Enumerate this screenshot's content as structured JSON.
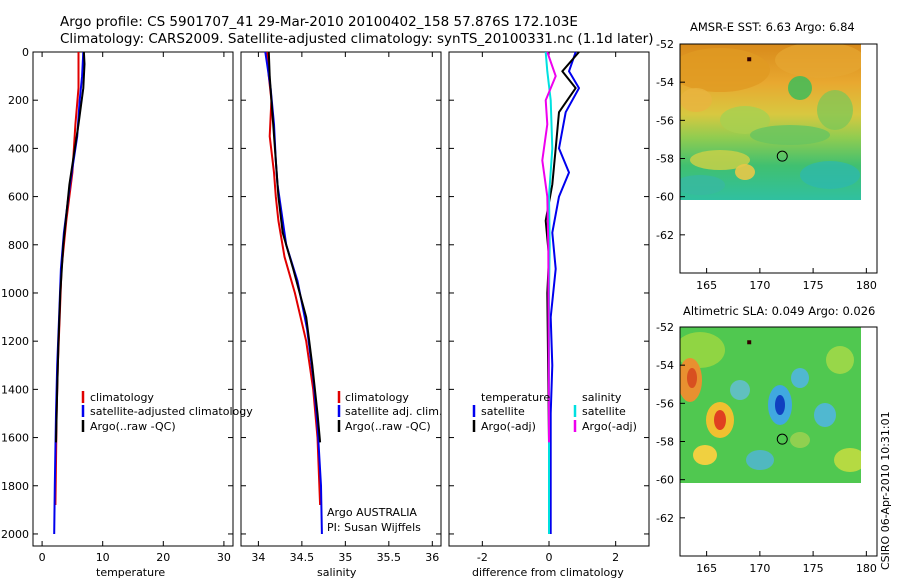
{
  "title": {
    "line1": "Argo profile: CS 5901707_41 29-Mar-2010 20100402_158 57.876S 172.103E",
    "line2": "Climatology: CARS2009. Satellite-adjusted climatology: synTS_20100331.nc (1.1d later)"
  },
  "colors": {
    "climatology": "#e00000",
    "satellite": "#0000ee",
    "argo": "#000000",
    "satellite_salinity": "#00e0e0",
    "argo_salinity": "#ee00ee"
  },
  "chart_data": [
    {
      "type": "line",
      "name": "temperature",
      "xlabel": "temperature",
      "xlim": [
        -1.5,
        31.5
      ],
      "ylim": [
        2050,
        0
      ],
      "xticks": [
        0,
        10,
        20,
        30
      ],
      "yticks": [
        0,
        200,
        400,
        600,
        800,
        1000,
        1200,
        1400,
        1600,
        1800,
        2000
      ],
      "series": [
        {
          "name": "climatology",
          "color": "#e00000",
          "x": [
            6.0,
            6.0,
            5.5,
            5.0,
            4.0,
            3.2,
            2.9,
            2.6,
            2.4,
            2.3,
            2.2
          ],
          "y": [
            0,
            150,
            300,
            500,
            700,
            900,
            1100,
            1300,
            1500,
            1700,
            1880
          ]
        },
        {
          "name": "satellite-adjusted climatology",
          "color": "#0000ee",
          "x": [
            6.8,
            6.6,
            6.2,
            5.8,
            4.6,
            3.6,
            3.1,
            2.8,
            2.5,
            2.3,
            2.1,
            2.0
          ],
          "y": [
            0,
            100,
            200,
            350,
            550,
            750,
            900,
            1100,
            1300,
            1500,
            1800,
            2000
          ]
        },
        {
          "name": "Argo(..raw -QC)",
          "color": "#000000",
          "x": [
            6.9,
            7.0,
            6.8,
            6.0,
            4.5,
            3.5,
            3.0,
            2.7,
            2.5,
            2.3
          ],
          "y": [
            0,
            50,
            150,
            300,
            550,
            800,
            1000,
            1200,
            1400,
            1620
          ]
        }
      ],
      "legend": {
        "position": "bottom-right",
        "entries": [
          "climatology",
          "satellite-adjusted climatology",
          "Argo(..raw -QC)"
        ]
      }
    },
    {
      "type": "line",
      "name": "salinity",
      "xlabel": "salinity",
      "xlim": [
        33.8,
        36.1
      ],
      "ylim": [
        2050,
        0
      ],
      "xticks": [
        34,
        34.5,
        35,
        35.5,
        36
      ],
      "xtick_labels": [
        "34",
        "34.5",
        "35",
        "35.5",
        "36"
      ],
      "series": [
        {
          "name": "climatology",
          "color": "#e00000",
          "x": [
            34.1,
            34.12,
            34.15,
            34.13,
            34.18,
            34.2,
            34.23,
            34.3,
            34.42,
            34.55,
            34.63,
            34.68,
            34.71
          ],
          "y": [
            0,
            100,
            200,
            350,
            500,
            600,
            700,
            850,
            1000,
            1200,
            1400,
            1600,
            1880
          ]
        },
        {
          "name": "satellite adj. clim.",
          "color": "#0000ee",
          "x": [
            34.08,
            34.1,
            34.14,
            34.18,
            34.2,
            34.22,
            34.26,
            34.32,
            34.45,
            34.56,
            34.63,
            34.68,
            34.72,
            34.73
          ],
          "y": [
            0,
            50,
            150,
            300,
            450,
            550,
            650,
            800,
            950,
            1150,
            1350,
            1550,
            1800,
            2000
          ]
        },
        {
          "name": "Argo(..raw -QC)",
          "color": "#000000",
          "x": [
            34.12,
            34.13,
            34.15,
            34.17,
            34.2,
            34.23,
            34.28,
            34.4,
            34.55,
            34.62,
            34.68,
            34.71
          ],
          "y": [
            0,
            100,
            200,
            300,
            450,
            600,
            750,
            900,
            1100,
            1300,
            1500,
            1620
          ]
        }
      ],
      "legend": {
        "position": "bottom-right",
        "entries": [
          "climatology",
          "satellite adj. clim.",
          "Argo(..raw -QC)"
        ]
      },
      "annotation": [
        "Argo AUSTRALIA",
        "PI: Susan Wijffels"
      ]
    },
    {
      "type": "line",
      "name": "difference",
      "xlabel": "difference from climatology",
      "xlim": [
        -3,
        3
      ],
      "ylim": [
        2050,
        0
      ],
      "xticks": [
        -2,
        0,
        2
      ],
      "series": [
        {
          "name": "temperature satellite",
          "color": "#0000ee",
          "x": [
            0.8,
            0.6,
            0.9,
            0.5,
            0.3,
            0.6,
            0.3,
            0.1,
            0.2,
            0.05,
            0.1,
            0.05,
            0.05
          ],
          "y": [
            0,
            80,
            150,
            250,
            400,
            500,
            600,
            750,
            900,
            1100,
            1300,
            1500,
            2000
          ]
        },
        {
          "name": "temperature Argo(-adj)",
          "color": "#000000",
          "x": [
            0.9,
            0.4,
            0.8,
            0.3,
            0.2,
            0.1,
            -0.1,
            0.0,
            -0.05,
            0.0
          ],
          "y": [
            0,
            80,
            150,
            250,
            400,
            550,
            700,
            850,
            1000,
            1620
          ]
        },
        {
          "name": "salinity satellite",
          "color": "#00e0e0",
          "x": [
            -0.1,
            -0.05,
            0.05,
            0.1,
            0.0,
            0.02,
            0.0,
            0.0,
            0.0
          ],
          "y": [
            0,
            80,
            200,
            400,
            600,
            800,
            1000,
            1400,
            2000
          ]
        },
        {
          "name": "salinity Argo(-adj)",
          "color": "#ee00ee",
          "x": [
            -0.05,
            0.2,
            -0.1,
            -0.05,
            -0.2,
            -0.05,
            -0.02,
            0.0
          ],
          "y": [
            0,
            100,
            200,
            300,
            450,
            600,
            800,
            1620
          ]
        }
      ],
      "legend": {
        "position": "bottom-right",
        "temperature_header": "temperature",
        "salinity_header": "salinity",
        "entries_temperature": [
          "satellite",
          "Argo(-adj)"
        ],
        "entries_salinity": [
          "satellite",
          "Argo(-adj)"
        ]
      }
    },
    {
      "type": "heatmap",
      "name": "sst-map",
      "title": "AMSR-E SST: 6.63 Argo: 6.84",
      "xlim": [
        162.5,
        181
      ],
      "ylim": [
        -64,
        -52
      ],
      "xticks": [
        165,
        170,
        175,
        180
      ],
      "yticks": [
        -52,
        -54,
        -56,
        -58,
        -60,
        -62
      ],
      "data_lon_range": [
        163,
        180
      ],
      "data_lat_range": [
        -60,
        -52
      ],
      "argo_position": [
        172.103,
        -57.876
      ],
      "track_point": [
        169,
        -52.8
      ]
    },
    {
      "type": "heatmap",
      "name": "sla-map",
      "title": "Altimetric SLA: 0.049 Argo: 0.026",
      "xlim": [
        162.5,
        181
      ],
      "ylim": [
        -64,
        -52
      ],
      "xticks": [
        165,
        170,
        175,
        180
      ],
      "yticks": [
        -52,
        -54,
        -56,
        -58,
        -60,
        -62
      ],
      "data_lon_range": [
        163,
        180
      ],
      "data_lat_range": [
        -60,
        -52
      ],
      "argo_position": [
        172.103,
        -57.876
      ],
      "track_point": [
        169,
        -52.8
      ]
    }
  ],
  "credit": "CSIRO 06-Apr-2010 10:31:01"
}
